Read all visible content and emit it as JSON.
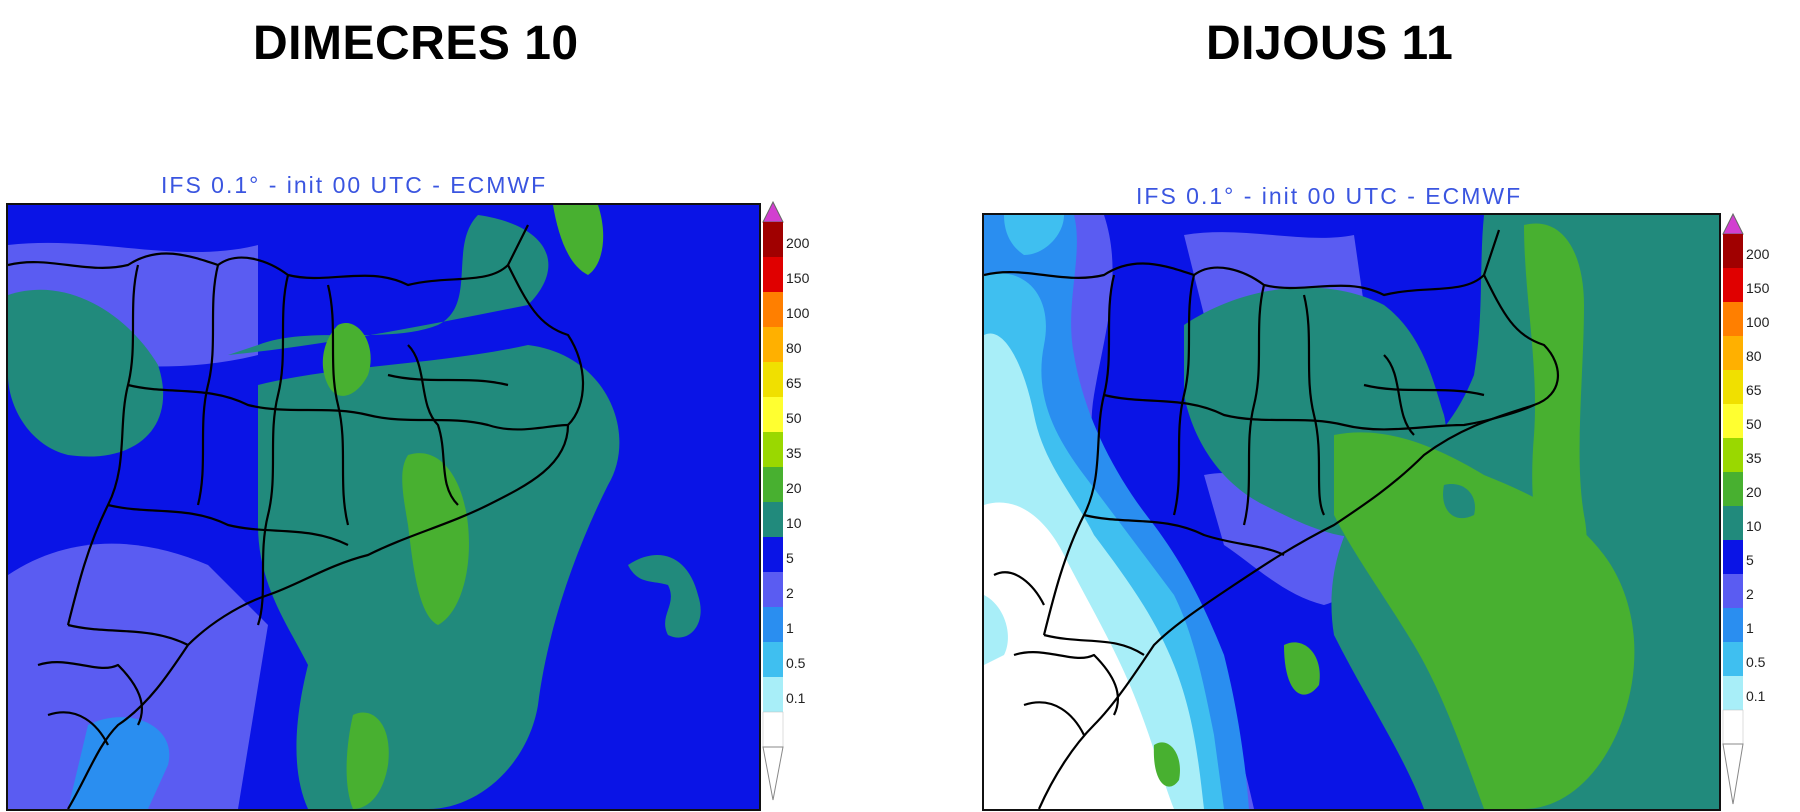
{
  "panels": [
    {
      "title": "DIMECRES 10",
      "caption": "IFS 0.1° - init 00 UTC - ECMWF"
    },
    {
      "title": "DIJOUS 11",
      "caption": "IFS 0.1° - init 00 UTC - ECMWF"
    }
  ],
  "legend": {
    "ticks": [
      "200",
      "150",
      "100",
      "80",
      "65",
      "50",
      "35",
      "20",
      "10",
      "5",
      "2",
      "1",
      "0.5",
      "0.1"
    ],
    "colors": [
      "#d23fd0",
      "#a00000",
      "#e00000",
      "#ff3000",
      "#ff7f00",
      "#ffb000",
      "#f0e000",
      "#ffff30",
      "#9ad800",
      "#48b030",
      "#218a7c",
      "#0a14e6",
      "#5a5cf2",
      "#2a8ef0",
      "#3fbff0",
      "#a8eef8",
      "#ffffff"
    ]
  }
}
